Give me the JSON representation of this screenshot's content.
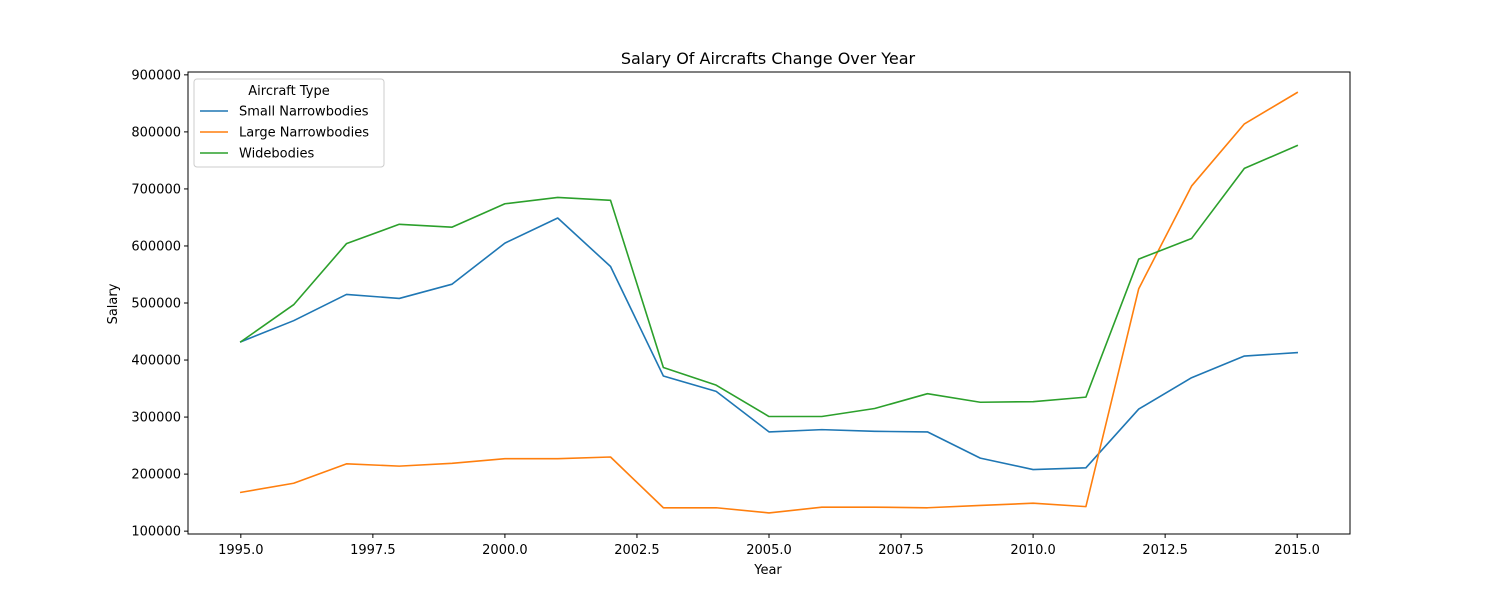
{
  "chart_data": {
    "type": "line",
    "title": "Salary Of Aircrafts Change Over Year",
    "xlabel": "Year",
    "ylabel": "Salary",
    "xlim": [
      1994.0,
      2016.0
    ],
    "ylim": [
      95000,
      905000
    ],
    "x_ticks": [
      1995.0,
      1997.5,
      2000.0,
      2002.5,
      2005.0,
      2007.5,
      2010.0,
      2012.5,
      2015.0
    ],
    "x_tick_labels": [
      "1995.0",
      "1997.5",
      "2000.0",
      "2002.5",
      "2005.0",
      "2007.5",
      "2010.0",
      "2012.5",
      "2015.0"
    ],
    "y_ticks": [
      100000,
      200000,
      300000,
      400000,
      500000,
      600000,
      700000,
      800000,
      900000
    ],
    "y_tick_labels": [
      "100000",
      "200000",
      "300000",
      "400000",
      "500000",
      "600000",
      "700000",
      "800000",
      "900000"
    ],
    "grid": false,
    "legend": {
      "title": "Aircraft Type",
      "placement": "top-left"
    },
    "x": [
      1995,
      1996,
      1997,
      1998,
      1999,
      2000,
      2001,
      2002,
      2003,
      2004,
      2005,
      2006,
      2007,
      2008,
      2009,
      2010,
      2011,
      2012,
      2013,
      2014,
      2015
    ],
    "series": [
      {
        "name": "Small Narrowbodies",
        "color": "#1f77b4",
        "values": [
          432000,
          469000,
          515000,
          508000,
          533000,
          605000,
          649000,
          564000,
          372000,
          345000,
          274000,
          278000,
          275000,
          274000,
          228000,
          208000,
          211000,
          314000,
          369000,
          407000,
          413000
        ]
      },
      {
        "name": "Large Narrowbodies",
        "color": "#ff7f0e",
        "values": [
          168000,
          184000,
          218000,
          214000,
          219000,
          227000,
          227000,
          230000,
          141000,
          141000,
          132000,
          142000,
          142000,
          141000,
          145000,
          149000,
          143000,
          525000,
          705000,
          814000,
          869000
        ]
      },
      {
        "name": "Widebodies",
        "color": "#2ca02c",
        "values": [
          432000,
          497000,
          604000,
          638000,
          633000,
          674000,
          685000,
          680000,
          387000,
          356000,
          301000,
          301000,
          315000,
          341000,
          326000,
          327000,
          335000,
          577000,
          613000,
          736000,
          776000
        ]
      }
    ]
  }
}
